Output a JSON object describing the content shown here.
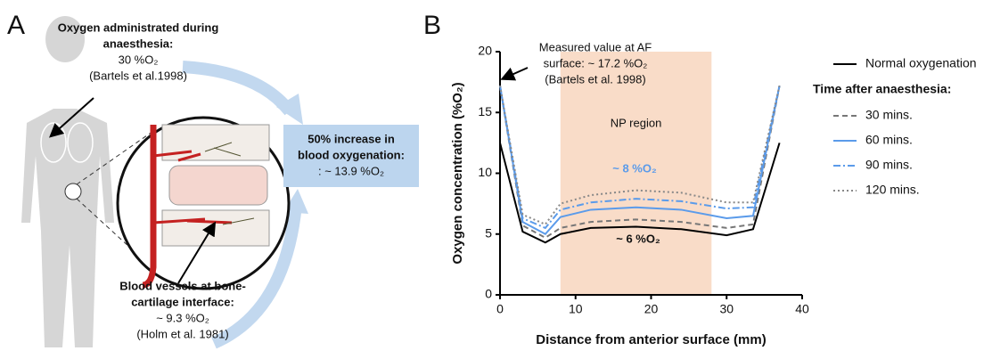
{
  "panel_a": {
    "panel_label": "A",
    "top_label": {
      "bold_lines": [
        "Oxygen administrated during",
        "anaesthesia:"
      ],
      "lines": [
        "30 %O₂",
        "(Bartels et al.1998)"
      ]
    },
    "box_label": {
      "bold_lines": [
        "50% increase in",
        "blood oxygenation:"
      ],
      "lines": [
        ": ~ 13.9 %O₂"
      ]
    },
    "bottom_label": {
      "bold_lines": [
        "Blood vessels at bone-",
        "cartilage interface:"
      ],
      "lines": [
        "~ 9.3 %O₂",
        "(Holm et al. 1981)"
      ]
    }
  },
  "chart_data": {
    "type": "line",
    "panel_label": "B",
    "x_label": "Distance from anterior surface (mm)",
    "y_label": "Oxygen concentration (%O₂)",
    "xlim": [
      0,
      40
    ],
    "ylim": [
      0,
      20
    ],
    "xticks": [
      0,
      10,
      20,
      30,
      40
    ],
    "yticks": [
      0,
      5,
      10,
      15,
      20
    ],
    "grid": false,
    "legend_title": "Time after anaesthesia:",
    "np_region": {
      "label": "NP region",
      "xlim": [
        8,
        28
      ],
      "color": "#f9dcc8"
    },
    "annotations": {
      "af_surface": [
        "Measured value at AF",
        "surface: ~ 17.2 %O₂",
        "(Bartels et al. 1998)"
      ],
      "high": "~ 8 %O₂",
      "low": "~ 6 %O₂"
    },
    "x": [
      0,
      3,
      6,
      8,
      12,
      18,
      24,
      30,
      33.5,
      37
    ],
    "series": [
      {
        "name": "Normal oxygenation",
        "color": "#000000",
        "style": "solid",
        "values": [
          12.5,
          5.2,
          4.3,
          5.0,
          5.5,
          5.6,
          5.4,
          4.9,
          5.4,
          12.5
        ]
      },
      {
        "name": "30 mins.",
        "color": "#777777",
        "style": "dashed",
        "values": [
          17.2,
          5.7,
          4.7,
          5.5,
          6.0,
          6.2,
          6.0,
          5.5,
          5.8,
          17.2
        ]
      },
      {
        "name": "60 mins.",
        "color": "#5b9bea",
        "style": "solid",
        "values": [
          17.2,
          6.0,
          5.0,
          6.4,
          7.0,
          7.2,
          7.0,
          6.3,
          6.5,
          17.2
        ]
      },
      {
        "name": "90 mins.",
        "color": "#5b9bea",
        "style": "dashdot",
        "values": [
          17.2,
          6.3,
          5.5,
          7.0,
          7.6,
          7.9,
          7.7,
          7.1,
          7.2,
          17.2
        ]
      },
      {
        "name": "120 mins.",
        "color": "#888888",
        "style": "dotted",
        "values": [
          17.2,
          6.6,
          5.8,
          7.5,
          8.2,
          8.6,
          8.4,
          7.6,
          7.6,
          17.2
        ]
      }
    ]
  }
}
